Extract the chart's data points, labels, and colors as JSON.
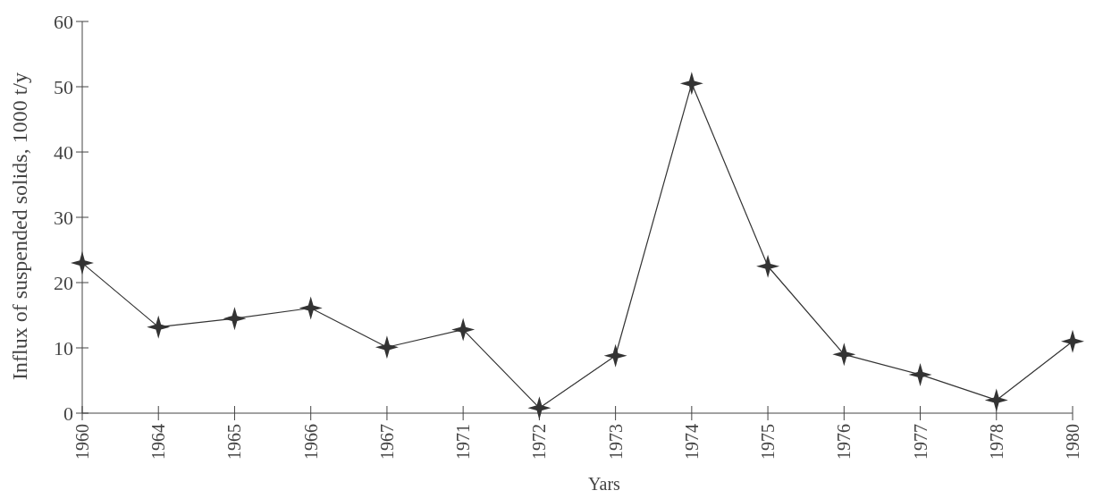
{
  "chart_data": {
    "type": "line",
    "xlabel": "Yars",
    "ylabel": "Influx of suspended solids, 1000 t/y",
    "categories": [
      "1960",
      "1964",
      "1965",
      "1966",
      "1967",
      "1971",
      "1972",
      "1973",
      "1974",
      "1975",
      "1976",
      "1977",
      "1978",
      "1980"
    ],
    "series": [
      {
        "color": "#333333",
        "values": [
          23,
          13.2,
          14.5,
          16.1,
          10.1,
          12.8,
          0.8,
          8.8,
          50.5,
          22.5,
          9,
          5.9,
          2,
          11
        ]
      }
    ],
    "ylim": [
      0,
      60
    ],
    "yticks": [
      0,
      10,
      20,
      30,
      40,
      50,
      60
    ],
    "grid": false,
    "marker": "star",
    "line_style": "solid"
  }
}
